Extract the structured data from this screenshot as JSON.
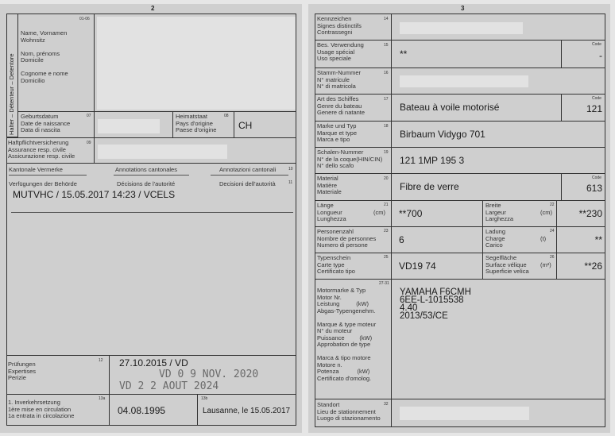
{
  "left": {
    "page_number": "2",
    "side_label": "Halter – Détenteur – Detentore",
    "holder": {
      "num": "01-06",
      "label": [
        "Name, Vornamen",
        "Wohnsitz",
        "",
        "Nom, prénoms",
        "Domicile",
        "",
        "Cognome e nome",
        "Domicilio"
      ]
    },
    "birth": {
      "num": "07",
      "label": [
        "Geburtsdatum",
        "Date de naissance",
        "Data di nascita"
      ]
    },
    "origin": {
      "num": "08",
      "label": [
        "Heimatstaat",
        "Pays d'origine",
        "Paese d'origine"
      ],
      "value": "CH"
    },
    "insurance": {
      "num": "09",
      "label": [
        "Haftpflichtversicherung",
        "Assurance resp. civile",
        "Assicurazione resp. civile"
      ]
    },
    "annotations": {
      "num": "10",
      "de": "Kantonale Vermerke",
      "fr": "Annotations cantonales",
      "it": "Annotazioni cantonali"
    },
    "decisions": {
      "num": "11",
      "de": "Verfügungen der Behörde",
      "fr": "Décisions de l'autorité",
      "it": "Decisioni dell'autorità",
      "value": "MUTVHC / 15.05.2017 14:23 / VCELS"
    },
    "inspections": {
      "num": "12",
      "label": [
        "Prüfungen",
        "Expertises",
        "Perizie"
      ],
      "value": "27.10.2015 / VD",
      "stamp1": "VD  0 9 NOV. 2020",
      "stamp2": "VD 2 2 AOUT 2024"
    },
    "first_registration": {
      "num": "13a",
      "label": [
        "1. Inverkehrsetzung",
        "1ère mise en circulation",
        "1a entrata in circolazione"
      ],
      "value": "04.08.1995"
    },
    "place_date": {
      "num": "13b",
      "value": "Lausanne, le 15.05.2017"
    }
  },
  "right": {
    "page_number": "3",
    "code_label": "Code",
    "rows": [
      {
        "num": "14",
        "label": [
          "Kennzeichen",
          "Signes distinctifs",
          "Contrassegni"
        ]
      },
      {
        "num": "15",
        "label": [
          "Bes. Verwendung",
          "Usage spécial",
          "Uso speciale"
        ],
        "value": "**",
        "code": "-"
      },
      {
        "num": "16",
        "label": [
          "Stamm-Nummer",
          "N° matricule",
          "N° di matricola"
        ]
      },
      {
        "num": "17",
        "label": [
          "Art des Schiffes",
          "Genre du bateau",
          "Genere di natante"
        ],
        "value": "Bateau à voile motorisé",
        "code": "121"
      },
      {
        "num": "18",
        "label": [
          "Marke und Typ",
          "Marque et type",
          "Marca e tipo"
        ],
        "value": "Birbaum Vidygo 701"
      },
      {
        "num": "19",
        "label": [
          "Schalen-Nummer",
          "N° de la coque(HIN/CIN)",
          "N° dello scafo"
        ],
        "value": "121 1MP 195 3"
      },
      {
        "num": "20",
        "label": [
          "Material",
          "Matière",
          "Materiale"
        ],
        "value": "Fibre de verre",
        "code": "613"
      }
    ],
    "pairs": [
      {
        "num1": "21",
        "label1": [
          "Länge",
          "Longueur",
          "Lunghezza"
        ],
        "unit1": "(cm)",
        "value1": "**700",
        "num2": "22",
        "label2": [
          "Breite",
          "Largeur",
          "Larghezza"
        ],
        "unit2": "(cm)",
        "value2": "**230"
      },
      {
        "num1": "23",
        "label1": [
          "Personenzahl",
          "Nombre de personnes",
          "Numero di persone"
        ],
        "unit1": "",
        "value1": "6",
        "num2": "24",
        "label2": [
          "Ladung",
          "Charge",
          "Carico"
        ],
        "unit2": "(t)",
        "value2": "**"
      },
      {
        "num1": "25",
        "label1": [
          "Typenschein",
          "Carte type",
          "Certificato tipo"
        ],
        "unit1": "",
        "value1": "VD19 74",
        "num2": "26",
        "label2": [
          "Segelfläche",
          "Surface vélique",
          "Superficie velica"
        ],
        "unit2": "(m²)",
        "value2": "**26"
      }
    ],
    "motor": {
      "num": "27-31",
      "label": [
        "Motormarke & Typ",
        "Motor Nr.",
        "Leistung          (kW)",
        "Abgas-Typengenehm.",
        "",
        "Marque & type moteur",
        "N° du moteur",
        "Puissance         (kW)",
        "Approbation de type",
        "",
        "Marca & tipo motore",
        "Motore n.",
        "Potenza           (kW)",
        "Certificato d'omolog."
      ],
      "values": [
        "YAMAHA F6CMH",
        "6EE-L-1015538",
        "4.40",
        "2013/53/CE"
      ]
    },
    "location": {
      "num": "32",
      "label": [
        "Standort",
        "Lieu de stationnement",
        "Luogo di stazionamento"
      ]
    }
  }
}
